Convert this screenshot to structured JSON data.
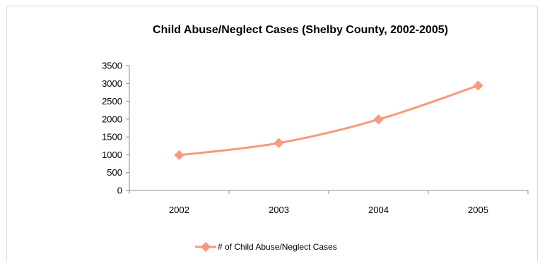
{
  "colors": {
    "series": "#f79a7d",
    "axis": "#8c8c8c",
    "frame": "#d9d9d9"
  },
  "chart_data": {
    "type": "line",
    "title": "Child Abuse/Neglect Cases (Shelby County, 2002-2005)",
    "xlabel": "",
    "ylabel": "",
    "categories": [
      "2002",
      "2003",
      "2004",
      "2005"
    ],
    "y_ticks": [
      "0",
      "500",
      "1000",
      "1500",
      "2000",
      "2500",
      "3000",
      "3500"
    ],
    "ylim": [
      0,
      3500
    ],
    "grid": false,
    "legend_position": "bottom",
    "marker": "diamond",
    "series": [
      {
        "name": "# of Child Abuse/Neglect Cases",
        "values": [
          990,
          1330,
          1990,
          2940
        ]
      }
    ]
  }
}
